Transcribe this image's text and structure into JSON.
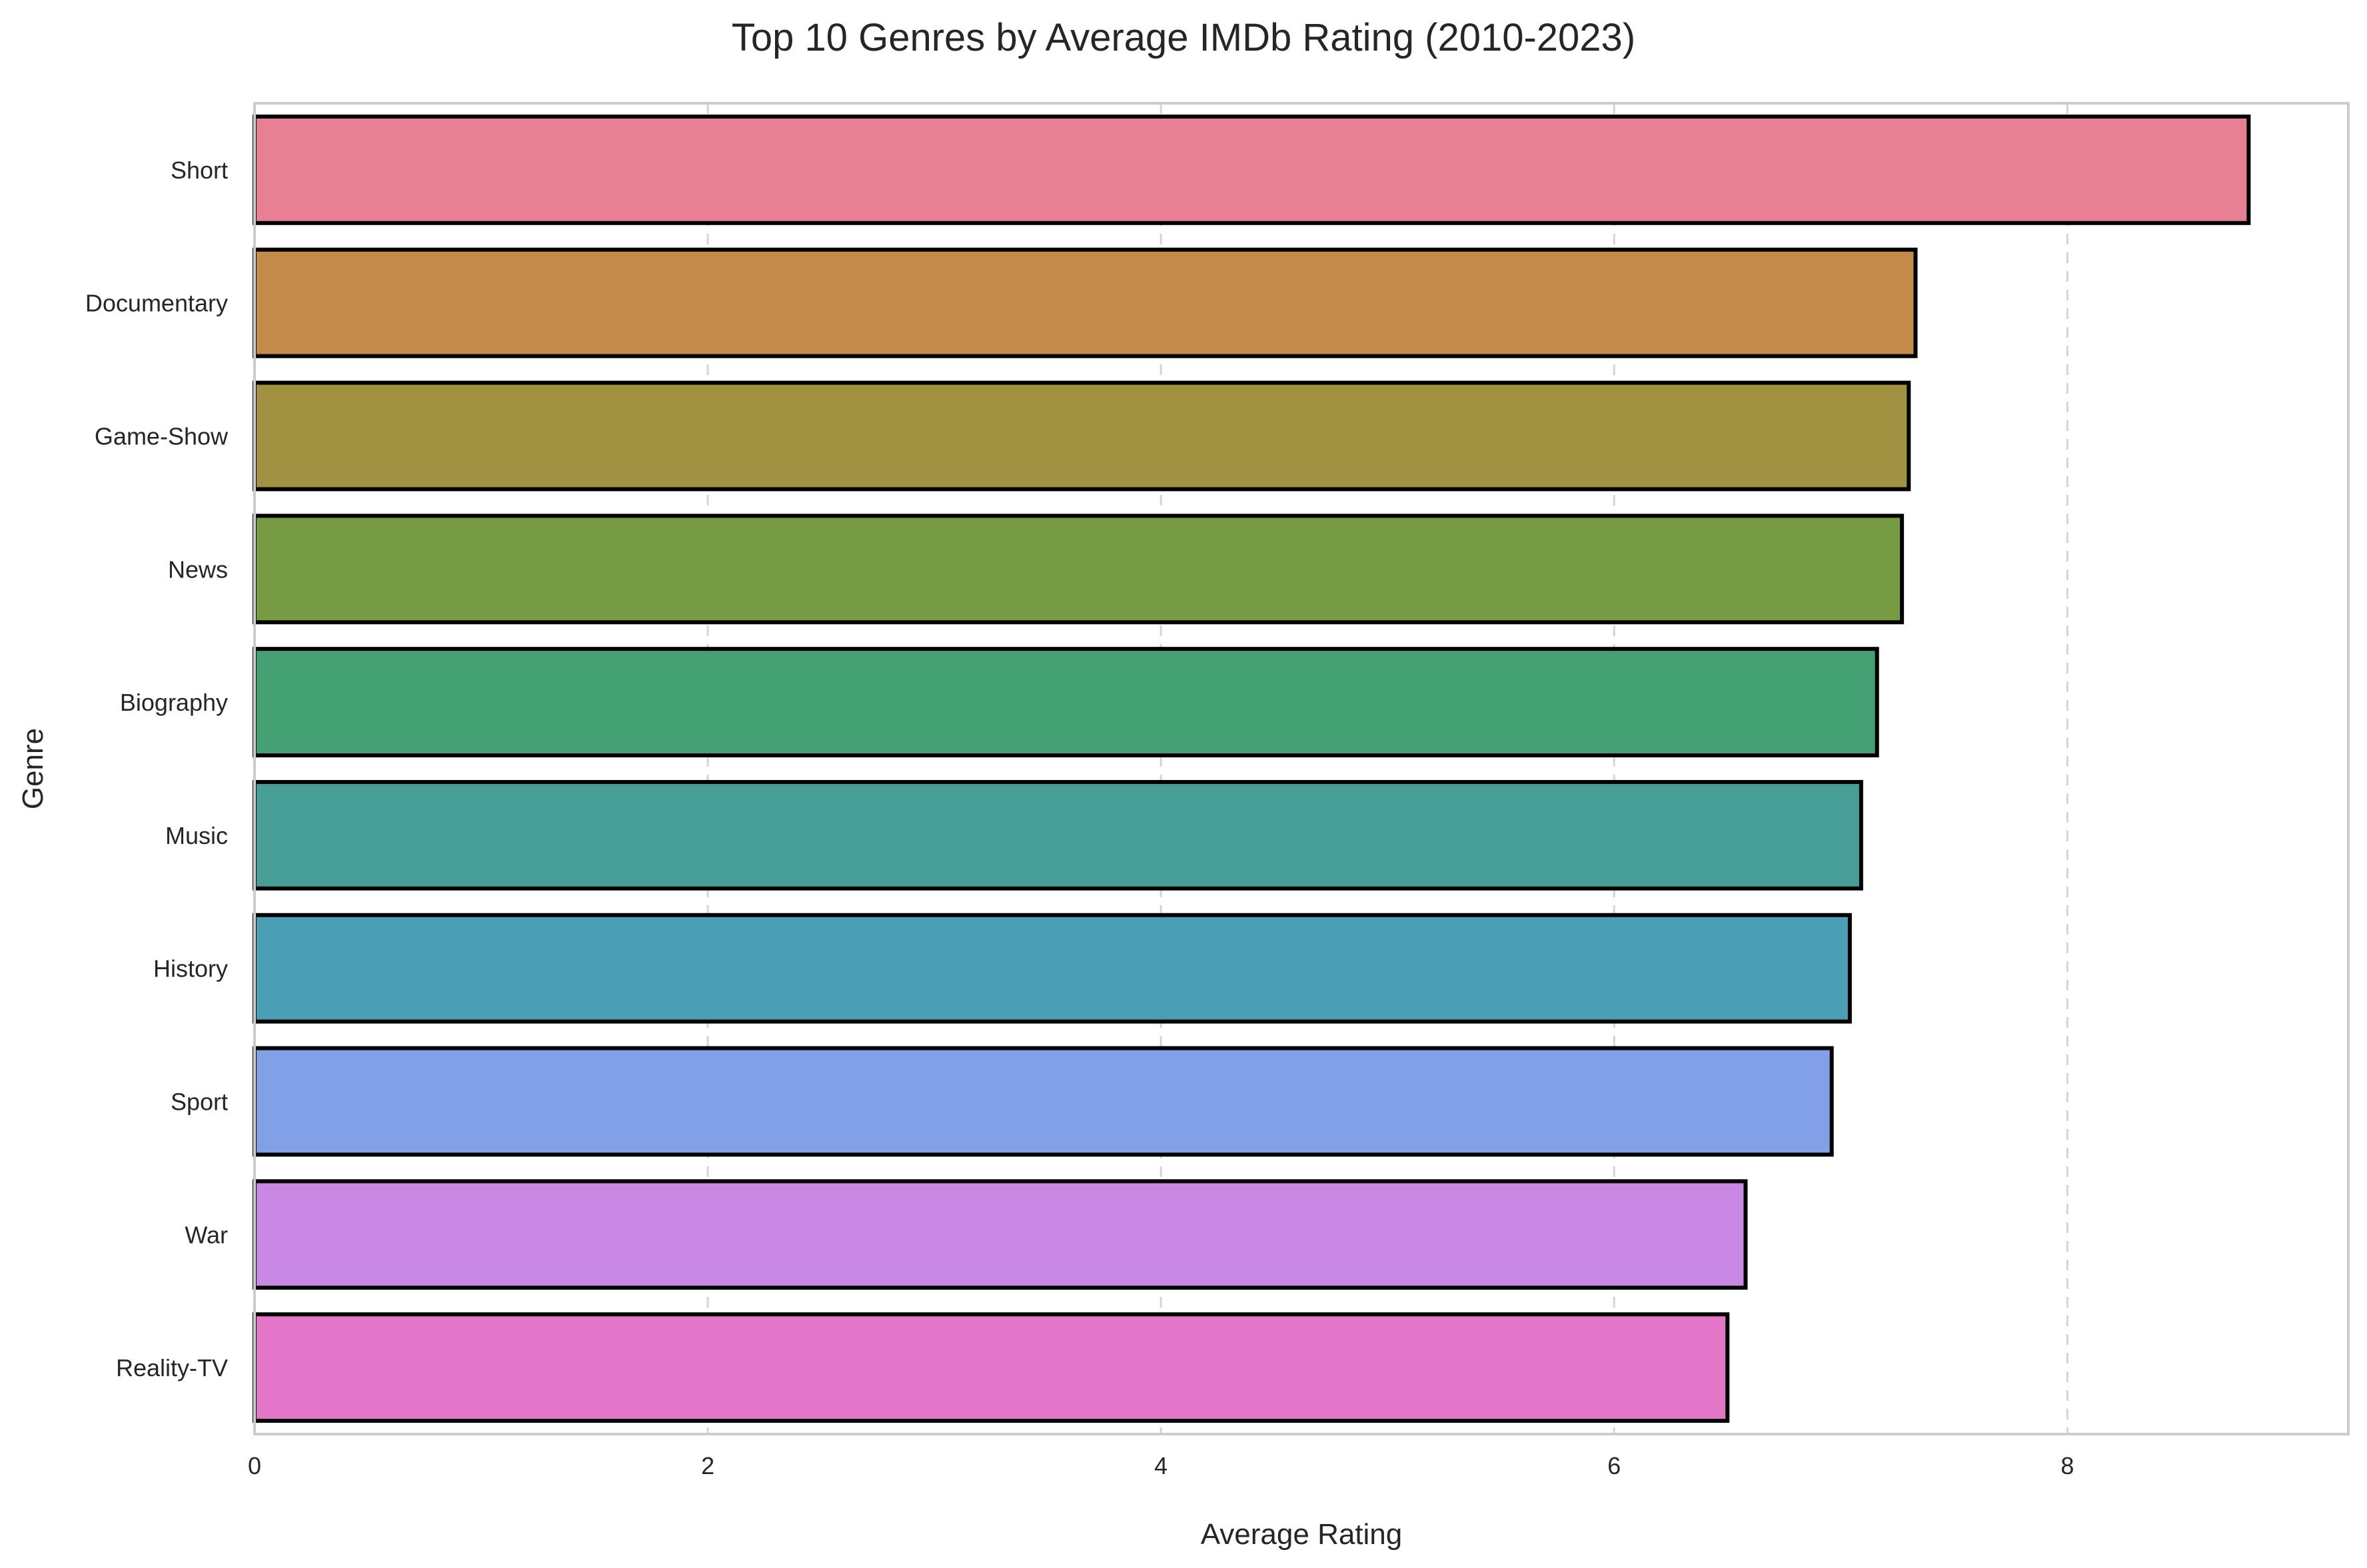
{
  "chart_data": {
    "type": "bar",
    "orientation": "horizontal",
    "title": "Top 10 Genres by Average IMDb Rating (2010-2023)",
    "xlabel": "Average Rating",
    "ylabel": "Genre",
    "categories": [
      "Short",
      "Documentary",
      "Game-Show",
      "News",
      "Biography",
      "Music",
      "History",
      "Sport",
      "War",
      "Reality-TV"
    ],
    "values": [
      8.8,
      7.33,
      7.3,
      7.27,
      7.16,
      7.09,
      7.04,
      6.96,
      6.58,
      6.5
    ],
    "colors": [
      "#e88093",
      "#c48a4a",
      "#a09240",
      "#779b42",
      "#43a173",
      "#479e97",
      "#4b9fb4",
      "#81a0e6",
      "#c888e4",
      "#e376c6"
    ],
    "edge_color": "#000000",
    "xlim": [
      0,
      9.24
    ],
    "xticks": [
      0,
      2,
      4,
      6,
      8
    ],
    "grid": "x-dashed",
    "legend": "none"
  }
}
